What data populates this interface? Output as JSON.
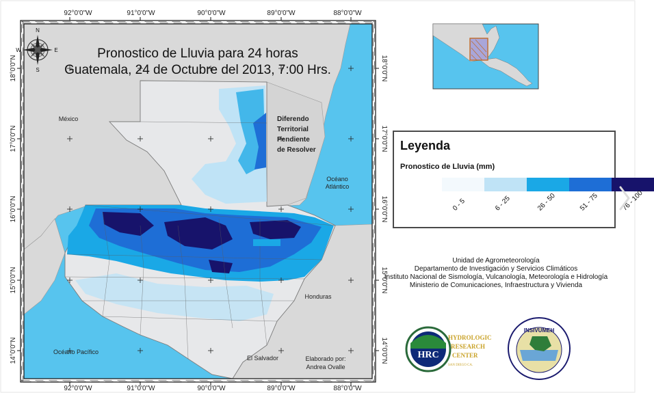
{
  "map": {
    "title_line1": "Pronostico de Lluvia para 24 horas",
    "title_line2": "Guatemala, 24 de Octubre del  2013,  7:00 Hrs.",
    "longitude_labels": [
      "92°0'0\"W",
      "91°0'0\"W",
      "90°0'0\"W",
      "89°0'0\"W",
      "88°0'0\"W"
    ],
    "latitude_labels": [
      "18°0'0\"N",
      "17°0'0\"N",
      "16°0'0\"N",
      "15°0'0\"N",
      "14°0'0\"N"
    ],
    "compass": {
      "n": "N",
      "e": "E",
      "s": "S",
      "w": "W"
    },
    "place_labels": {
      "mexico": "México",
      "dispute_1": "Diferendo",
      "dispute_2": "Territorial",
      "dispute_3": "Pendiente",
      "dispute_4": "de Resolver",
      "atlantic_1": "Océano",
      "atlantic_2": "Atlántico",
      "honduras": "Honduras",
      "el_salvador": "El Salvador",
      "pacific": "Océano Pacífico",
      "author_1": "Elaborado por:",
      "author_2": "Andrea Ovalle"
    }
  },
  "legend": {
    "title": "Leyenda",
    "subtitle": "Pronostico de Lluvia (mm)",
    "classes": [
      {
        "label": "0 - 5",
        "color": "#f3f9fd"
      },
      {
        "label": "6 - 25",
        "color": "#bfe3f6"
      },
      {
        "label": "26 - 50",
        "color": "#1aa8e6"
      },
      {
        "label": "51 - 75",
        "color": "#1e6ed6"
      },
      {
        "label": "76 - 100",
        "color": "#17136b"
      }
    ]
  },
  "credits": {
    "line1": "Unidad de Agrometeorología",
    "line2": "Departamento de Investigación y Servicios Climáticos",
    "line3": "Instituto Nacional de Sismología, Vulcanología, Meteorología e Hidrología",
    "line4": "Ministerio de Comunicaciones, Infraestructura y Vivienda"
  },
  "logos": {
    "hrc_mark": "HRC",
    "hrc_1": "HYDROLOGIC",
    "hrc_2": "RESEARCH",
    "hrc_3": "CENTER",
    "hrc_4": "SAN DIEGO CA.",
    "insivumeh": "INSIVUMEH"
  },
  "colors": {
    "sea": "#57c4ee",
    "land_neighbor": "#d9d9d9",
    "land_gt_base": "#e7e8ea"
  }
}
